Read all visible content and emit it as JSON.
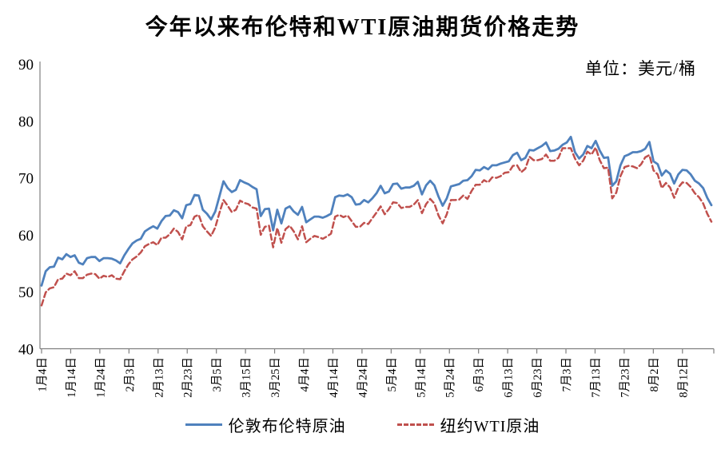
{
  "title": "今年以来布伦特和WTI原油期货价格走势",
  "unit_label": "单位：美元/桶",
  "colors": {
    "brent": "#4f81bd",
    "wti": "#c0504d",
    "axis": "#7f7f7f",
    "background": "#ffffff"
  },
  "legend": [
    {
      "label": "伦敦布伦特原油",
      "color": "#4f81bd",
      "line_style": "solid"
    },
    {
      "label": "纽约WTI原油",
      "color": "#c0504d",
      "line_style": "dashed"
    }
  ],
  "chart_data": {
    "type": "line",
    "title": "今年以来布伦特和WTI原油期货价格走势",
    "xlabel": "",
    "ylabel": "美元/桶",
    "ylim": [
      40,
      90
    ],
    "yticks": [
      40,
      50,
      60,
      70,
      80,
      90
    ],
    "grid": false,
    "legend_position": "bottom",
    "x_tick_labels": [
      "1月4日",
      "1月14日",
      "1月24日",
      "2月3日",
      "2月13日",
      "2月23日",
      "3月5日",
      "3月15日",
      "3月25日",
      "4月4日",
      "4月14日",
      "4月24日",
      "5月4日",
      "5月14日",
      "5月24日",
      "6月3日",
      "6月13日",
      "6月23日",
      "7月3日",
      "7月13日",
      "7月23日",
      "8月2日",
      "8月12日"
    ],
    "x_label_last_index": 155,
    "series": [
      {
        "key": "brent",
        "name": "伦敦布伦特原油",
        "color": "#4f81bd",
        "dash": null,
        "width": 2.8,
        "values": [
          51.1,
          53.6,
          54.3,
          54.4,
          56.0,
          55.7,
          56.6,
          56.1,
          56.4,
          55.1,
          54.8,
          55.9,
          56.1,
          56.1,
          55.4,
          55.9,
          55.9,
          55.8,
          55.5,
          55.0,
          56.4,
          57.5,
          58.5,
          59.0,
          59.3,
          60.6,
          61.1,
          61.5,
          61.1,
          62.4,
          63.3,
          63.4,
          64.3,
          64.0,
          62.9,
          65.2,
          65.4,
          67.0,
          66.9,
          64.4,
          63.7,
          62.7,
          64.1,
          66.7,
          69.4,
          68.2,
          67.5,
          67.9,
          69.6,
          69.2,
          68.9,
          68.4,
          68.0,
          63.3,
          64.5,
          64.6,
          60.8,
          64.4,
          62.0,
          64.6,
          65.0,
          64.1,
          63.5,
          64.9,
          62.2,
          62.7,
          63.2,
          63.2,
          63.0,
          63.3,
          63.7,
          66.6,
          66.9,
          66.8,
          67.1,
          66.6,
          65.3,
          65.4,
          66.1,
          65.7,
          66.4,
          67.3,
          68.6,
          67.3,
          67.6,
          68.9,
          69.0,
          68.1,
          68.3,
          68.3,
          68.6,
          69.3,
          67.1,
          68.7,
          69.5,
          68.7,
          66.7,
          65.1,
          66.4,
          68.5,
          68.7,
          68.9,
          69.5,
          69.6,
          70.3,
          71.4,
          71.3,
          71.9,
          71.5,
          72.2,
          72.2,
          72.5,
          72.7,
          72.9,
          74.0,
          74.4,
          73.1,
          73.5,
          74.9,
          74.8,
          75.2,
          75.6,
          76.2,
          74.7,
          74.8,
          75.1,
          75.8,
          76.2,
          77.2,
          74.5,
          73.4,
          74.1,
          75.6,
          75.2,
          76.5,
          74.8,
          73.5,
          73.6,
          68.6,
          69.4,
          72.2,
          73.8,
          74.1,
          74.5,
          74.5,
          74.7,
          75.1,
          76.3,
          72.9,
          72.4,
          70.4,
          71.3,
          70.7,
          69.0,
          70.6,
          71.4,
          71.3,
          70.6,
          69.5,
          69.0,
          68.2,
          66.5,
          65.2
        ]
      },
      {
        "key": "wti",
        "name": "纽约WTI原油",
        "color": "#c0504d",
        "dash": "7 4",
        "width": 2.5,
        "values": [
          47.6,
          49.9,
          50.6,
          50.8,
          52.2,
          52.3,
          53.2,
          52.9,
          53.6,
          52.4,
          52.4,
          53.0,
          53.2,
          53.1,
          52.3,
          52.8,
          52.6,
          52.9,
          52.3,
          52.2,
          53.6,
          54.8,
          55.7,
          56.2,
          56.9,
          58.0,
          58.4,
          58.7,
          58.2,
          59.5,
          59.5,
          60.1,
          61.1,
          60.5,
          59.2,
          61.5,
          61.7,
          63.2,
          63.5,
          61.5,
          60.6,
          59.8,
          61.3,
          63.8,
          66.1,
          65.1,
          64.0,
          64.4,
          66.0,
          65.6,
          65.4,
          64.8,
          64.6,
          60.0,
          61.4,
          61.6,
          57.8,
          61.2,
          58.6,
          61.0,
          61.6,
          60.6,
          59.2,
          61.5,
          58.7,
          59.3,
          59.8,
          59.6,
          59.3,
          59.7,
          60.2,
          63.2,
          63.5,
          63.1,
          63.4,
          62.4,
          61.4,
          61.4,
          62.1,
          61.9,
          62.9,
          63.9,
          65.0,
          63.6,
          64.5,
          65.7,
          65.6,
          64.7,
          64.9,
          64.9,
          65.3,
          66.1,
          63.8,
          65.4,
          66.3,
          65.5,
          63.4,
          62.0,
          63.6,
          66.1,
          66.1,
          66.2,
          66.9,
          66.3,
          67.7,
          68.8,
          68.8,
          69.6,
          69.2,
          70.1,
          70.0,
          70.3,
          70.9,
          71.0,
          72.1,
          72.2,
          71.0,
          71.6,
          73.7,
          73.1,
          73.1,
          73.3,
          74.1,
          73.0,
          73.0,
          73.5,
          75.2,
          75.2,
          75.2,
          73.4,
          72.2,
          73.0,
          74.6,
          74.1,
          75.3,
          73.1,
          71.7,
          71.8,
          66.4,
          67.4,
          70.3,
          71.9,
          72.1,
          72.0,
          71.7,
          72.4,
          73.6,
          74.0,
          71.3,
          70.6,
          68.2,
          69.1,
          68.3,
          66.5,
          68.3,
          69.2,
          69.1,
          68.4,
          67.3,
          66.6,
          65.5,
          63.7,
          62.3
        ]
      }
    ]
  }
}
